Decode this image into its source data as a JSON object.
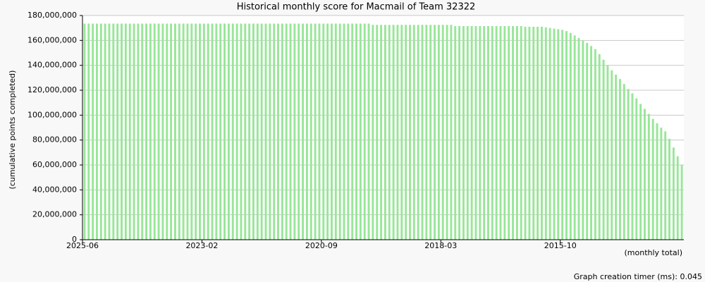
{
  "chart_data": {
    "type": "bar",
    "title": "Historical monthly score for Macmail of Team 32322",
    "y_label": "(cumulative points completed)",
    "x_label": "(monthly total)",
    "footer": "Graph creation timer (ms): 0.045",
    "color": "#98e698",
    "grid": true,
    "ylim": [
      0,
      180000000
    ],
    "yticks": [
      {
        "value": 0,
        "label": "0"
      },
      {
        "value": 20000000,
        "label": "20,000,000"
      },
      {
        "value": 40000000,
        "label": "40,000,000"
      },
      {
        "value": 60000000,
        "label": "60,000,000"
      },
      {
        "value": 80000000,
        "label": "80,000,000"
      },
      {
        "value": 100000000,
        "label": "100,000,000"
      },
      {
        "value": 120000000,
        "label": "120,000,000"
      },
      {
        "value": 140000000,
        "label": "140,000,000"
      },
      {
        "value": 160000000,
        "label": "160,000,000"
      },
      {
        "value": 180000000,
        "label": "180,000,000"
      }
    ],
    "categories": [
      "2025-06",
      null,
      null,
      null,
      null,
      null,
      null,
      null,
      null,
      null,
      null,
      null,
      null,
      null,
      null,
      null,
      null,
      null,
      null,
      null,
      null,
      null,
      null,
      null,
      null,
      null,
      null,
      null,
      null,
      "2023-02",
      null,
      null,
      null,
      null,
      null,
      null,
      null,
      null,
      null,
      null,
      null,
      null,
      null,
      null,
      null,
      null,
      null,
      null,
      null,
      null,
      null,
      null,
      null,
      null,
      null,
      null,
      null,
      null,
      "2020-09",
      null,
      null,
      null,
      null,
      null,
      null,
      null,
      null,
      null,
      null,
      null,
      null,
      null,
      null,
      null,
      null,
      null,
      null,
      null,
      null,
      null,
      null,
      null,
      null,
      null,
      null,
      null,
      null,
      "2018-03",
      null,
      null,
      null,
      null,
      null,
      null,
      null,
      null,
      null,
      null,
      null,
      null,
      null,
      null,
      null,
      null,
      null,
      null,
      null,
      null,
      null,
      null,
      null,
      null,
      null,
      null,
      null,
      null,
      "2015-10",
      null,
      null,
      null,
      null,
      null,
      null,
      null,
      null,
      null,
      null,
      null,
      null,
      null,
      null,
      null,
      null,
      null,
      null,
      null,
      null,
      null,
      null,
      null,
      null,
      null,
      null,
      null,
      null,
      null
    ],
    "values": [
      173500000,
      173500000,
      173500000,
      173500000,
      173500000,
      173500000,
      173500000,
      173500000,
      173500000,
      173500000,
      173500000,
      173500000,
      173500000,
      173500000,
      173500000,
      173500000,
      173500000,
      173500000,
      173500000,
      173500000,
      173500000,
      173500000,
      173500000,
      173500000,
      173500000,
      173500000,
      173500000,
      173500000,
      173500000,
      173500000,
      173500000,
      173500000,
      173500000,
      173500000,
      173500000,
      173500000,
      173500000,
      173500000,
      173500000,
      173500000,
      173500000,
      173500000,
      173500000,
      173500000,
      173500000,
      173500000,
      173500000,
      173500000,
      173500000,
      173500000,
      173500000,
      173500000,
      173500000,
      173500000,
      173500000,
      173500000,
      173500000,
      173500000,
      173500000,
      173500000,
      173500000,
      173500000,
      173500000,
      173500000,
      173500000,
      173500000,
      173500000,
      173500000,
      173500000,
      173500000,
      172500000,
      172500000,
      172500000,
      172500000,
      172500000,
      172500000,
      172500000,
      172500000,
      172500000,
      172500000,
      172500000,
      172500000,
      172500000,
      172500000,
      172500000,
      172500000,
      172500000,
      172500000,
      172500000,
      172500000,
      171500000,
      171500000,
      171500000,
      171500000,
      171500000,
      171500000,
      171500000,
      171500000,
      171500000,
      171500000,
      171500000,
      171500000,
      171500000,
      171500000,
      171500000,
      171500000,
      171500000,
      171000000,
      171000000,
      171000000,
      171000000,
      171000000,
      170500000,
      170000000,
      169500000,
      169000000,
      168500000,
      167500000,
      166000000,
      164000000,
      162000000,
      160000000,
      158000000,
      155500000,
      153000000,
      149000000,
      144500000,
      140000000,
      136000000,
      132500000,
      129000000,
      125000000,
      121000000,
      117500000,
      113500000,
      109000000,
      105000000,
      101000000,
      97000000,
      93500000,
      90000000,
      87000000,
      81000000,
      74000000,
      67000000,
      60000000
    ]
  }
}
